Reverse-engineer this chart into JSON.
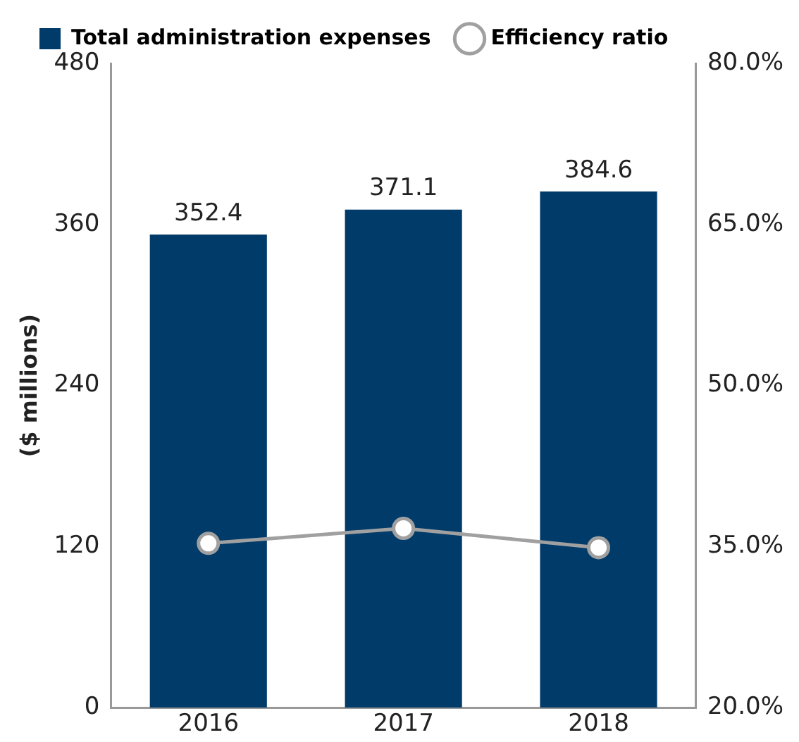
{
  "chart_data": {
    "type": "bar",
    "categories": [
      "2016",
      "2017",
      "2018"
    ],
    "ylabel": "($ millions)",
    "series": [
      {
        "name": "Total administration expenses",
        "color": "#003b6a",
        "values": [
          352.4,
          371.1,
          384.6
        ],
        "value_labels": [
          "352.4",
          "371.1",
          "384.6"
        ]
      },
      {
        "name": "Efficiency ratio",
        "type": "line",
        "axis": "y2",
        "color": "#a0a0a0",
        "values": [
          35.3,
          36.7,
          34.9
        ]
      }
    ],
    "ylim": [
      0,
      480
    ],
    "yticks": [
      0,
      120,
      240,
      360,
      480
    ],
    "y2lim": [
      20,
      80
    ],
    "y2ticks": [
      {
        "value": 20,
        "label": "20.0%"
      },
      {
        "value": 35,
        "label": "35.0%"
      },
      {
        "value": 50,
        "label": "50.0%"
      },
      {
        "value": 65,
        "label": "65.0%"
      },
      {
        "value": 80,
        "label": "80.0%"
      }
    ],
    "grid": false,
    "legend": "top left",
    "marker": "circle"
  }
}
